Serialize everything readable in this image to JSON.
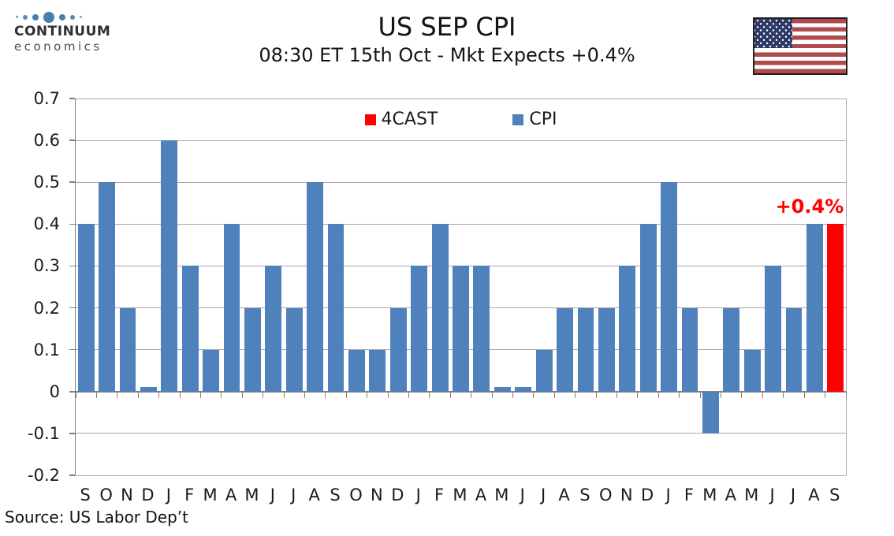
{
  "header": {
    "logo": {
      "line1": "CONTINUUM",
      "line2": "economics"
    },
    "title": "US SEP CPI",
    "subtitle": "08:30 ET 15th Oct - Mkt Expects +0.4%"
  },
  "legend": [
    {
      "label": "4CAST",
      "color": "#FF0000"
    },
    {
      "label": "CPI",
      "color": "#4F81BD"
    }
  ],
  "chart_data": {
    "type": "bar",
    "title": "US SEP CPI",
    "subtitle": "08:30 ET 15th Oct - Mkt Expects +0.4%",
    "categories": [
      "S",
      "O",
      "N",
      "D",
      "J",
      "F",
      "M",
      "A",
      "M",
      "J",
      "J",
      "A",
      "S",
      "O",
      "N",
      "D",
      "J",
      "F",
      "M",
      "A",
      "M",
      "J",
      "J",
      "A",
      "S",
      "O",
      "N",
      "D",
      "J",
      "F",
      "M",
      "A",
      "M",
      "J",
      "J",
      "A",
      "S"
    ],
    "values": [
      0.4,
      0.5,
      0.2,
      0.01,
      0.6,
      0.3,
      0.1,
      0.4,
      0.2,
      0.3,
      0.2,
      0.5,
      0.4,
      0.1,
      0.1,
      0.2,
      0.3,
      0.4,
      0.3,
      0.3,
      0.01,
      0.01,
      0.1,
      0.2,
      0.2,
      0.2,
      0.3,
      0.4,
      0.5,
      0.2,
      -0.1,
      0.2,
      0.1,
      0.3,
      0.2,
      0.4,
      0.4
    ],
    "series": [
      {
        "name": "CPI",
        "color": "#4F81BD",
        "note": "all bars except forecast"
      },
      {
        "name": "4CAST",
        "color": "#FF0000",
        "indices": [
          36
        ]
      }
    ],
    "forecast_index": 36,
    "annotation": {
      "text": "+0.4%",
      "index": 36,
      "color": "#FF0000"
    },
    "ylim": [
      -0.2,
      0.7
    ],
    "yticks": [
      "0.7",
      "0.6",
      "0.5",
      "0.4",
      "0.3",
      "0.2",
      "0.1",
      "0",
      "-0.1",
      "-0.2"
    ],
    "xlabel": "",
    "ylabel": "",
    "grid": true,
    "legend_position": "top-center"
  },
  "source": "Source: US Labor Dep’t"
}
